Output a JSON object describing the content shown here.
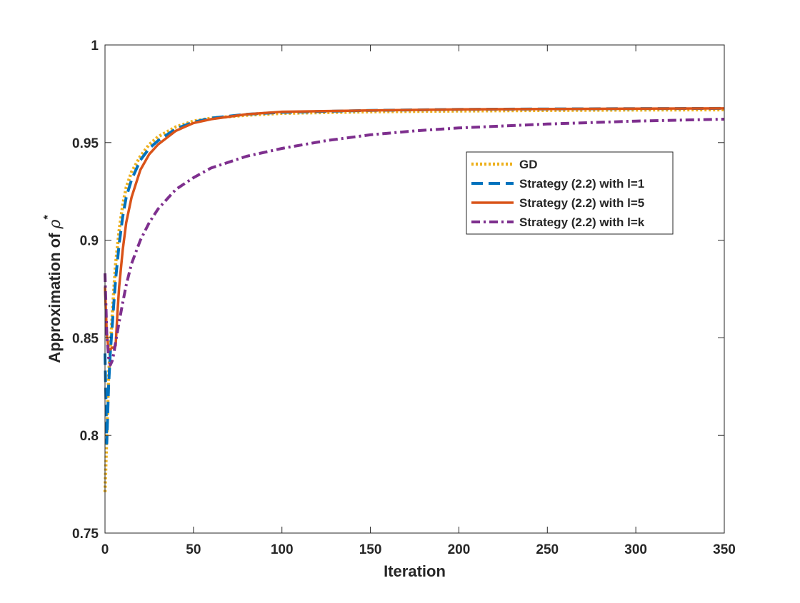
{
  "chart_data": {
    "type": "line",
    "title": "",
    "xlabel": "Iteration",
    "ylabel": "Approximation of ",
    "ylabel_symbol": "ρ",
    "ylabel_superscript": "*",
    "xlim": [
      0,
      350
    ],
    "ylim": [
      0.75,
      1
    ],
    "xticks": [
      0,
      50,
      100,
      150,
      200,
      250,
      300,
      350
    ],
    "yticks": [
      0.75,
      0.8,
      0.85,
      0.9,
      0.95,
      1
    ],
    "xtick_labels": [
      "0",
      "50",
      "100",
      "150",
      "200",
      "250",
      "300",
      "350"
    ],
    "ytick_labels": [
      "0.75",
      "0.8",
      "0.85",
      "0.9",
      "0.95",
      "1"
    ],
    "grid": false,
    "legend_position": "center-right",
    "series": [
      {
        "name": "GD",
        "color": "#EDB120",
        "style": "dotted",
        "x": [
          0,
          1,
          2,
          3,
          4,
          5,
          6,
          8,
          10,
          12,
          15,
          20,
          25,
          30,
          40,
          50,
          60,
          80,
          100,
          150,
          200,
          250,
          300,
          350
        ],
        "y": [
          0.771,
          0.8,
          0.83,
          0.845,
          0.86,
          0.875,
          0.888,
          0.905,
          0.918,
          0.927,
          0.935,
          0.943,
          0.949,
          0.953,
          0.958,
          0.961,
          0.9625,
          0.964,
          0.965,
          0.9658,
          0.9662,
          0.9665,
          0.9667,
          0.9668
        ]
      },
      {
        "name": "Strategy (2.2) with l=1",
        "color": "#0072BD",
        "style": "dashed",
        "x": [
          0,
          1,
          2,
          3,
          4,
          5,
          6,
          8,
          10,
          12,
          15,
          20,
          25,
          30,
          40,
          50,
          60,
          80,
          100,
          150,
          200,
          250,
          300,
          350
        ],
        "y": [
          0.842,
          0.796,
          0.825,
          0.842,
          0.855,
          0.868,
          0.88,
          0.898,
          0.912,
          0.922,
          0.931,
          0.941,
          0.947,
          0.951,
          0.957,
          0.9605,
          0.9625,
          0.9645,
          0.9655,
          0.9665,
          0.967,
          0.9672,
          0.9674,
          0.9675
        ]
      },
      {
        "name": "Strategy (2.2) with l=5",
        "color": "#D95319",
        "style": "solid",
        "x": [
          0,
          1,
          2,
          3,
          4,
          5,
          6,
          7,
          8,
          10,
          12,
          15,
          20,
          25,
          30,
          40,
          50,
          60,
          80,
          100,
          150,
          200,
          250,
          300,
          350
        ],
        "y": [
          0.876,
          0.852,
          0.844,
          0.844,
          0.845,
          0.845,
          0.846,
          0.862,
          0.876,
          0.895,
          0.909,
          0.922,
          0.936,
          0.944,
          0.949,
          0.956,
          0.96,
          0.962,
          0.9645,
          0.9658,
          0.9665,
          0.967,
          0.9672,
          0.9674,
          0.9675
        ]
      },
      {
        "name": "Strategy (2.2) with l=k",
        "color": "#7E2F8E",
        "style": "dash-dot",
        "x": [
          0,
          1,
          2,
          3,
          4,
          5,
          6,
          8,
          10,
          12,
          15,
          20,
          25,
          30,
          40,
          50,
          60,
          80,
          100,
          125,
          150,
          175,
          200,
          250,
          300,
          350
        ],
        "y": [
          0.883,
          0.852,
          0.84,
          0.836,
          0.838,
          0.842,
          0.848,
          0.858,
          0.868,
          0.877,
          0.888,
          0.9,
          0.909,
          0.916,
          0.926,
          0.932,
          0.937,
          0.943,
          0.947,
          0.951,
          0.954,
          0.956,
          0.9575,
          0.9595,
          0.961,
          0.962
        ]
      }
    ]
  }
}
